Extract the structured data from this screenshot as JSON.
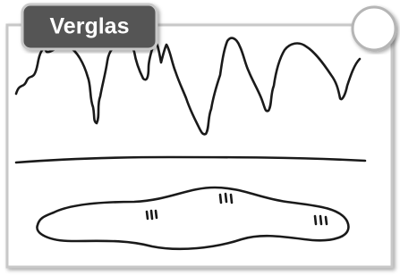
{
  "label": "Verglas"
}
